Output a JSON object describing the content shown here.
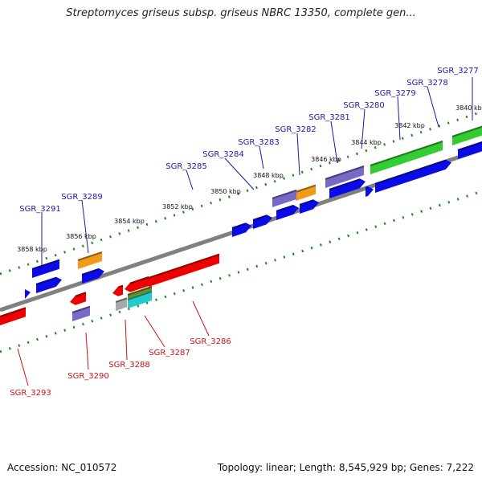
{
  "title": "Streptomyces griseus subsp. griseus NBRC 13350, complete gen...",
  "footer": {
    "accession": "Accession: NC_010572",
    "topology": "Topology: linear; Length: 8,545,929 bp; Genes: 7,222"
  },
  "colors": {
    "backbone": "#808080",
    "tick": "#1a8a1a",
    "blue": "#0b0be8",
    "red": "#ee0000",
    "orange": "#f39a1b",
    "purple": "#7a68c8",
    "green": "#33cc33",
    "gray": "#a8a8a8",
    "cyan": "#22cccc",
    "olive": "#6f9020",
    "label_top": "#1a1aa8",
    "label_bottom": "#cc1111"
  },
  "kbp_labels": [
    "3840 kbp",
    "3842 kbp",
    "3844 kbp",
    "3846 kbp",
    "3848 kbp",
    "3850 kbp",
    "3852 kbp",
    "3854 kbp",
    "3856 kbp",
    "3858 kbp"
  ],
  "top_genes": [
    {
      "label": "SGR_3277"
    },
    {
      "label": "SGR_3278"
    },
    {
      "label": "SGR_3279"
    },
    {
      "label": "SGR_3280"
    },
    {
      "label": "SGR_3281"
    },
    {
      "label": "SGR_3282"
    },
    {
      "label": "SGR_3283"
    },
    {
      "label": "SGR_3284"
    },
    {
      "label": "SGR_3285"
    },
    {
      "label": "SGR_3289"
    },
    {
      "label": "SGR_3291"
    }
  ],
  "bottom_genes": [
    {
      "label": "SGR_3286"
    },
    {
      "label": "SGR_3287"
    },
    {
      "label": "SGR_3288"
    },
    {
      "label": "SGR_3290"
    },
    {
      "label": "SGR_3293"
    }
  ]
}
